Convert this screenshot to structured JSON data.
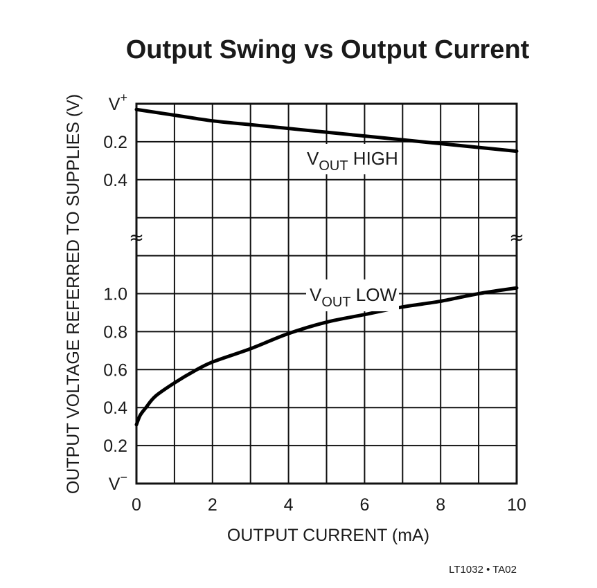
{
  "chart_data": {
    "type": "line",
    "title": "Output Swing vs Output Current",
    "xlabel": "OUTPUT CURRENT (mA)",
    "ylabel": "OUTPUT VOLTAGE REFERRED TO SUPPLIES (V)",
    "xlim": [
      0,
      10
    ],
    "x_ticks": [
      "0",
      "2",
      "4",
      "6",
      "8",
      "10"
    ],
    "x_tick_values": [
      0,
      2,
      4,
      6,
      8,
      10
    ],
    "grid": true,
    "axis_break": true,
    "upper_section": {
      "reference": "V+",
      "ylim": [
        0,
        0.5
      ],
      "y_ticks": [
        {
          "label": "V",
          "sup": "+",
          "value": 0
        },
        {
          "label": "0.2",
          "value": 0.2
        },
        {
          "label": "0.4",
          "value": 0.4
        }
      ]
    },
    "lower_section": {
      "reference": "V-",
      "ylim": [
        0,
        1.0
      ],
      "y_ticks": [
        {
          "label": "1.0",
          "value": 1.0
        },
        {
          "label": "0.8",
          "value": 0.8
        },
        {
          "label": "0.6",
          "value": 0.6
        },
        {
          "label": "0.4",
          "value": 0.4
        },
        {
          "label": "0.2",
          "value": 0.2
        },
        {
          "label": "V",
          "sup": "−",
          "value": 0
        }
      ]
    },
    "series": [
      {
        "name": "VOUT HIGH",
        "label_main": "V",
        "label_sub": "OUT",
        "label_rest": " HIGH",
        "section": "upper",
        "x": [
          0,
          1,
          2,
          3,
          4,
          5,
          6,
          7,
          8,
          9,
          10
        ],
        "values": [
          0.03,
          0.06,
          0.09,
          0.11,
          0.13,
          0.15,
          0.17,
          0.19,
          0.21,
          0.23,
          0.25
        ]
      },
      {
        "name": "VOUT LOW",
        "label_main": "V",
        "label_sub": "OUT",
        "label_rest": " LOW",
        "section": "lower",
        "x": [
          0,
          0.1,
          0.25,
          0.5,
          1,
          1.5,
          2,
          3,
          4,
          5,
          6,
          7,
          8,
          9,
          10
        ],
        "values": [
          0.31,
          0.36,
          0.4,
          0.46,
          0.53,
          0.59,
          0.64,
          0.71,
          0.79,
          0.85,
          0.89,
          0.93,
          0.96,
          1.0,
          1.03
        ]
      }
    ]
  },
  "footer": {
    "code": "LT1032 • TA02"
  },
  "break_symbol": "≈"
}
